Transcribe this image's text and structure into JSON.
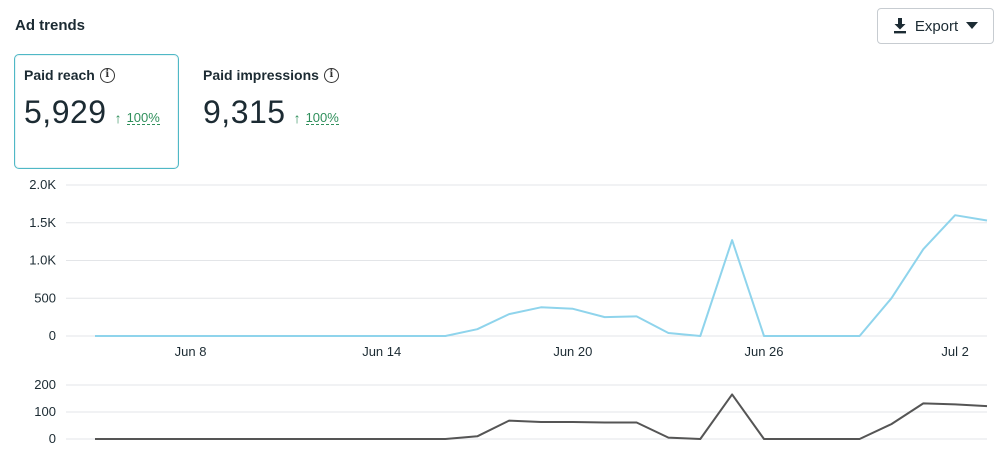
{
  "header": {
    "title": "Ad trends"
  },
  "toolbar": {
    "export_label": "Export"
  },
  "metrics": [
    {
      "label": "Paid reach",
      "value": "5,929",
      "change": "100%",
      "direction": "up",
      "selected": true
    },
    {
      "label": "Paid impressions",
      "value": "9,315",
      "change": "100%",
      "direction": "up",
      "selected": false
    }
  ],
  "colors": {
    "reach_line": "#8fd4ec",
    "impressions_line": "#555555",
    "trend_up": "#2f8f5b",
    "selected_border": "#4fb8c6",
    "grid": "#e3e5e8"
  },
  "chart_data": [
    {
      "type": "line",
      "x": [
        "Jun 5",
        "Jun 6",
        "Jun 7",
        "Jun 8",
        "Jun 9",
        "Jun 10",
        "Jun 11",
        "Jun 12",
        "Jun 13",
        "Jun 14",
        "Jun 15",
        "Jun 16",
        "Jun 17",
        "Jun 18",
        "Jun 19",
        "Jun 20",
        "Jun 21",
        "Jun 22",
        "Jun 23",
        "Jun 24",
        "Jun 25",
        "Jun 26",
        "Jun 27",
        "Jun 28",
        "Jun 29",
        "Jun 30",
        "Jul 1",
        "Jul 2",
        "Jul 3"
      ],
      "x_tick_labels": [
        "Jun 8",
        "Jun 14",
        "Jun 20",
        "Jun 26",
        "Jul 2"
      ],
      "y_tick_labels": [
        "2.0K",
        "1.5K",
        "1.0K",
        "500",
        "0"
      ],
      "ylim": [
        0,
        2000
      ],
      "grid": true,
      "series": [
        {
          "values": [
            0,
            0,
            0,
            0,
            0,
            0,
            0,
            0,
            0,
            0,
            0,
            0,
            90,
            290,
            380,
            360,
            250,
            260,
            40,
            0,
            1270,
            0,
            0,
            0,
            0,
            500,
            1150,
            1600,
            1530
          ]
        }
      ]
    },
    {
      "type": "line",
      "x": [
        "Jun 5",
        "Jun 6",
        "Jun 7",
        "Jun 8",
        "Jun 9",
        "Jun 10",
        "Jun 11",
        "Jun 12",
        "Jun 13",
        "Jun 14",
        "Jun 15",
        "Jun 16",
        "Jun 17",
        "Jun 18",
        "Jun 19",
        "Jun 20",
        "Jun 21",
        "Jun 22",
        "Jun 23",
        "Jun 24",
        "Jun 25",
        "Jun 26",
        "Jun 27",
        "Jun 28",
        "Jun 29",
        "Jun 30",
        "Jul 1",
        "Jul 2",
        "Jul 3"
      ],
      "y_tick_labels": [
        "200",
        "100",
        "0"
      ],
      "ylim": [
        0,
        200
      ],
      "grid": true,
      "series": [
        {
          "values": [
            0,
            0,
            0,
            0,
            0,
            0,
            0,
            0,
            0,
            0,
            0,
            0,
            10,
            68,
            63,
            63,
            61,
            61,
            5,
            0,
            165,
            0,
            0,
            0,
            0,
            55,
            132,
            128,
            122
          ]
        }
      ]
    }
  ]
}
